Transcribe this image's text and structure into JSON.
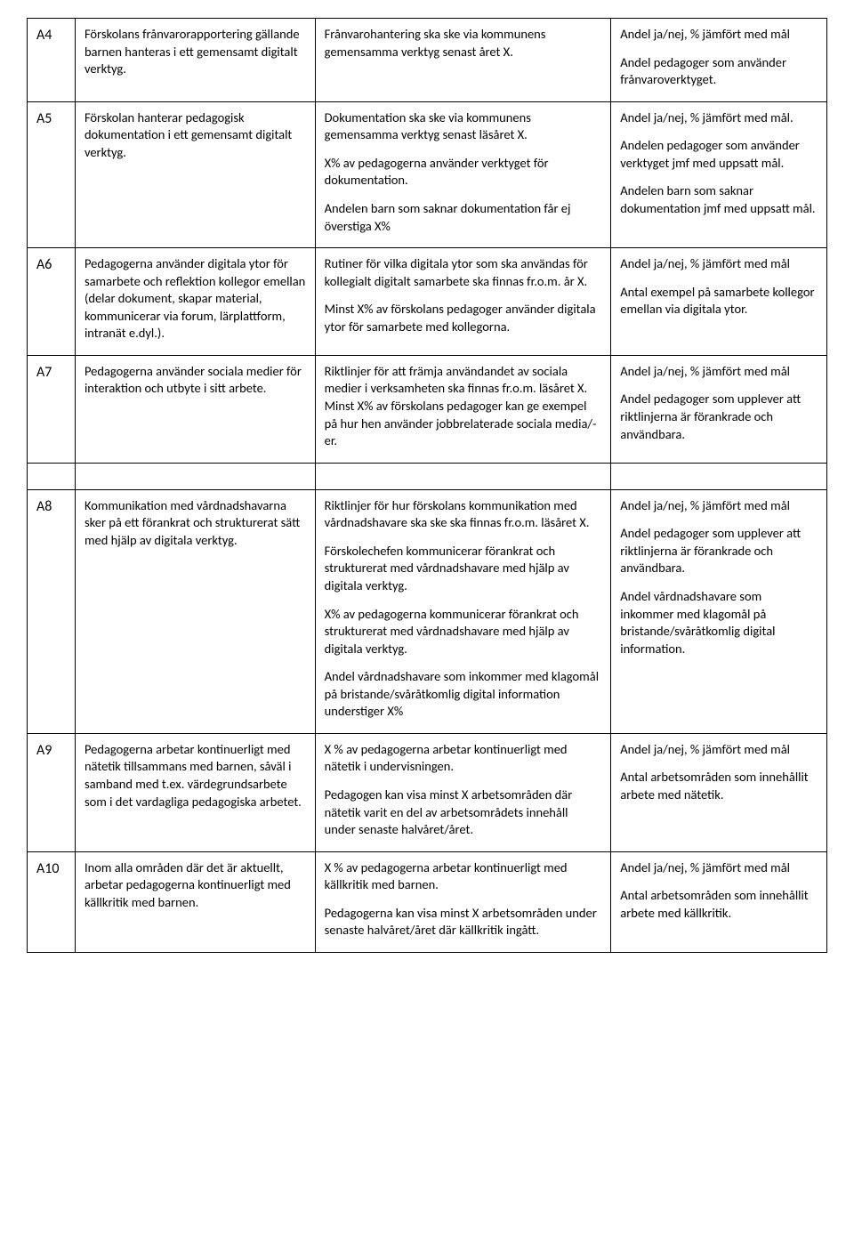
{
  "table": {
    "border_color": "#000000",
    "background_color": "#ffffff",
    "text_color": "#000000",
    "font_family": "Calibri",
    "body_fontsize_pt": 11,
    "id_fontsize_pt": 12,
    "col_widths_pct": [
      6,
      30,
      37,
      27
    ],
    "rows": [
      {
        "id": "A4",
        "desc": [
          "Förskolans frånvarorapportering gällande barnen hanteras i ett gemensamt digitalt verktyg."
        ],
        "goal": [
          "Frånvarohantering ska ske via kommunens gemensamma verktyg senast året X."
        ],
        "meas": [
          "Andel ja/nej, % jämfört med mål",
          "Andel pedagoger som använder frånvaroverktyget."
        ]
      },
      {
        "id": "A5",
        "desc": [
          "Förskolan hanterar pedagogisk dokumentation i ett gemensamt digitalt verktyg."
        ],
        "goal": [
          "Dokumentation ska ske via kommunens gemensamma verktyg senast läsåret X.",
          "X% av pedagogerna använder verktyget för dokumentation.",
          "Andelen barn som saknar dokumentation får ej överstiga X%"
        ],
        "meas": [
          "Andel ja/nej, % jämfört med mål.",
          "Andelen pedagoger som använder verktyget jmf med uppsatt mål.",
          "Andelen barn som saknar dokumentation jmf med uppsatt mål."
        ]
      },
      {
        "id": "A6",
        "desc": [
          "Pedagogerna använder digitala ytor för samarbete och reflektion kollegor emellan (delar dokument, skapar material, kommunicerar via forum, lärplattform, intranät e.dyl.)."
        ],
        "goal": [
          "Rutiner för vilka digitala ytor som ska användas för kollegialt digitalt samarbete ska finnas fr.o.m. år X.",
          "Minst X% av förskolans pedagoger använder digitala ytor för samarbete med kollegorna."
        ],
        "meas": [
          "Andel ja/nej, % jämfört med mål",
          "Antal exempel på samarbete kollegor emellan via digitala ytor."
        ]
      },
      {
        "id": "A7",
        "desc": [
          "Pedagogerna använder sociala medier för interaktion och utbyte i sitt arbete."
        ],
        "goal": [
          "Riktlinjer för att främja användandet av sociala medier i verksamheten ska finnas fr.o.m. läsåret X.\nMinst X% av förskolans pedagoger kan ge exempel på hur hen använder jobbrelaterade sociala media/-er."
        ],
        "meas": [
          "Andel ja/nej, % jämfört med mål",
          "Andel pedagoger som upplever att riktlinjerna är förankrade och användbara."
        ]
      },
      {
        "id": "A8",
        "desc": [
          "Kommunikation med vårdnadshavarna sker på ett förankrat och strukturerat sätt med hjälp av digitala verktyg."
        ],
        "goal": [
          "Riktlinjer för hur förskolans kommunikation med vårdnadshavare ska ske ska finnas fr.o.m. läsåret X.",
          "Förskolechefen kommunicerar förankrat och strukturerat med vårdnadshavare med hjälp av digitala verktyg.",
          "X% av pedagogerna kommunicerar förankrat och strukturerat med vårdnadshavare med hjälp av digitala verktyg.",
          "Andel vårdnadshavare som inkommer med klagomål på bristande/svåråtkomlig digital information understiger X%"
        ],
        "meas": [
          "Andel ja/nej, % jämfört med mål",
          "Andel pedagoger som upplever att riktlinjerna är förankrade och användbara.",
          "Andel vårdnadshavare som inkommer med klagomål på bristande/svåråtkomlig digital information."
        ]
      },
      {
        "id": "A9",
        "desc": [
          "Pedagogerna arbetar kontinuerligt med nätetik tillsammans med barnen, såväl i samband med t.ex. värdegrundsarbete som i det vardagliga pedagogiska arbetet."
        ],
        "goal": [
          "X % av pedagogerna arbetar kontinuerligt med nätetik i undervisningen.",
          "Pedagogen kan visa minst X arbetsområden där nätetik varit en del av arbetsområdets innehåll under senaste halvåret/året."
        ],
        "meas": [
          "Andel ja/nej, % jämfört med mål",
          "Antal arbetsområden som innehållit arbete med nätetik."
        ]
      },
      {
        "id": "A10",
        "desc": [
          "Inom alla områden där det är aktuellt, arbetar pedagogerna kontinuerligt med källkritik med barnen."
        ],
        "goal": [
          "X % av pedagogerna arbetar kontinuerligt med källkritik med barnen.",
          "Pedagogerna kan visa minst X arbetsområden under senaste halvåret/året där källkritik ingått."
        ],
        "meas": [
          "Andel ja/nej, % jämfört med mål",
          "Antal arbetsområden som innehållit arbete med källkritik."
        ]
      }
    ],
    "gap_after_index": 3
  }
}
